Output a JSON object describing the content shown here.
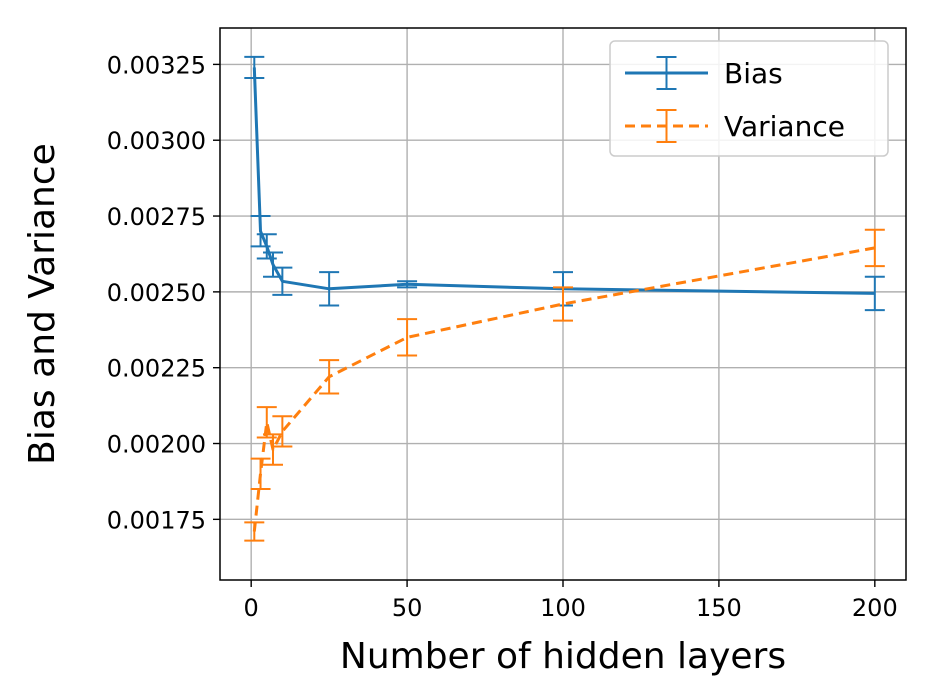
{
  "chart_data": {
    "type": "line",
    "title": "",
    "xlabel": "Number of hidden layers",
    "ylabel": "Bias and Variance",
    "xlim": [
      -10,
      210
    ],
    "ylim": [
      0.00155,
      0.00337
    ],
    "x_ticks": [
      0,
      50,
      100,
      150,
      200
    ],
    "x_tick_labels": [
      "0",
      "50",
      "100",
      "150",
      "200"
    ],
    "y_ticks": [
      0.00175,
      0.002,
      0.00225,
      0.0025,
      0.00275,
      0.003,
      0.00325
    ],
    "y_tick_labels": [
      "0.00175",
      "0.00200",
      "0.00225",
      "0.00250",
      "0.00275",
      "0.00300",
      "0.00325"
    ],
    "grid": true,
    "legend_position": "top-right",
    "x": [
      1,
      3,
      5,
      7,
      10,
      25,
      50,
      100,
      200
    ],
    "series": [
      {
        "name": "Bias",
        "color": "#1f77b4",
        "linestyle": "solid",
        "values": [
          0.00324,
          0.0027,
          0.00265,
          0.00259,
          0.002535,
          0.00251,
          0.002525,
          0.00251,
          0.002495
        ],
        "errors": [
          3.5e-05,
          5e-05,
          4e-05,
          4e-05,
          4.5e-05,
          5.5e-05,
          1e-05,
          5.5e-05,
          5.5e-05
        ]
      },
      {
        "name": "Variance",
        "color": "#ff7f0e",
        "linestyle": "dashed",
        "values": [
          0.00171,
          0.0019,
          0.00207,
          0.00198,
          0.00204,
          0.00222,
          0.00235,
          0.00246,
          0.002645
        ],
        "errors": [
          3e-05,
          5e-05,
          5e-05,
          5e-05,
          5e-05,
          5.5e-05,
          6e-05,
          5.5e-05,
          6e-05
        ]
      }
    ]
  }
}
